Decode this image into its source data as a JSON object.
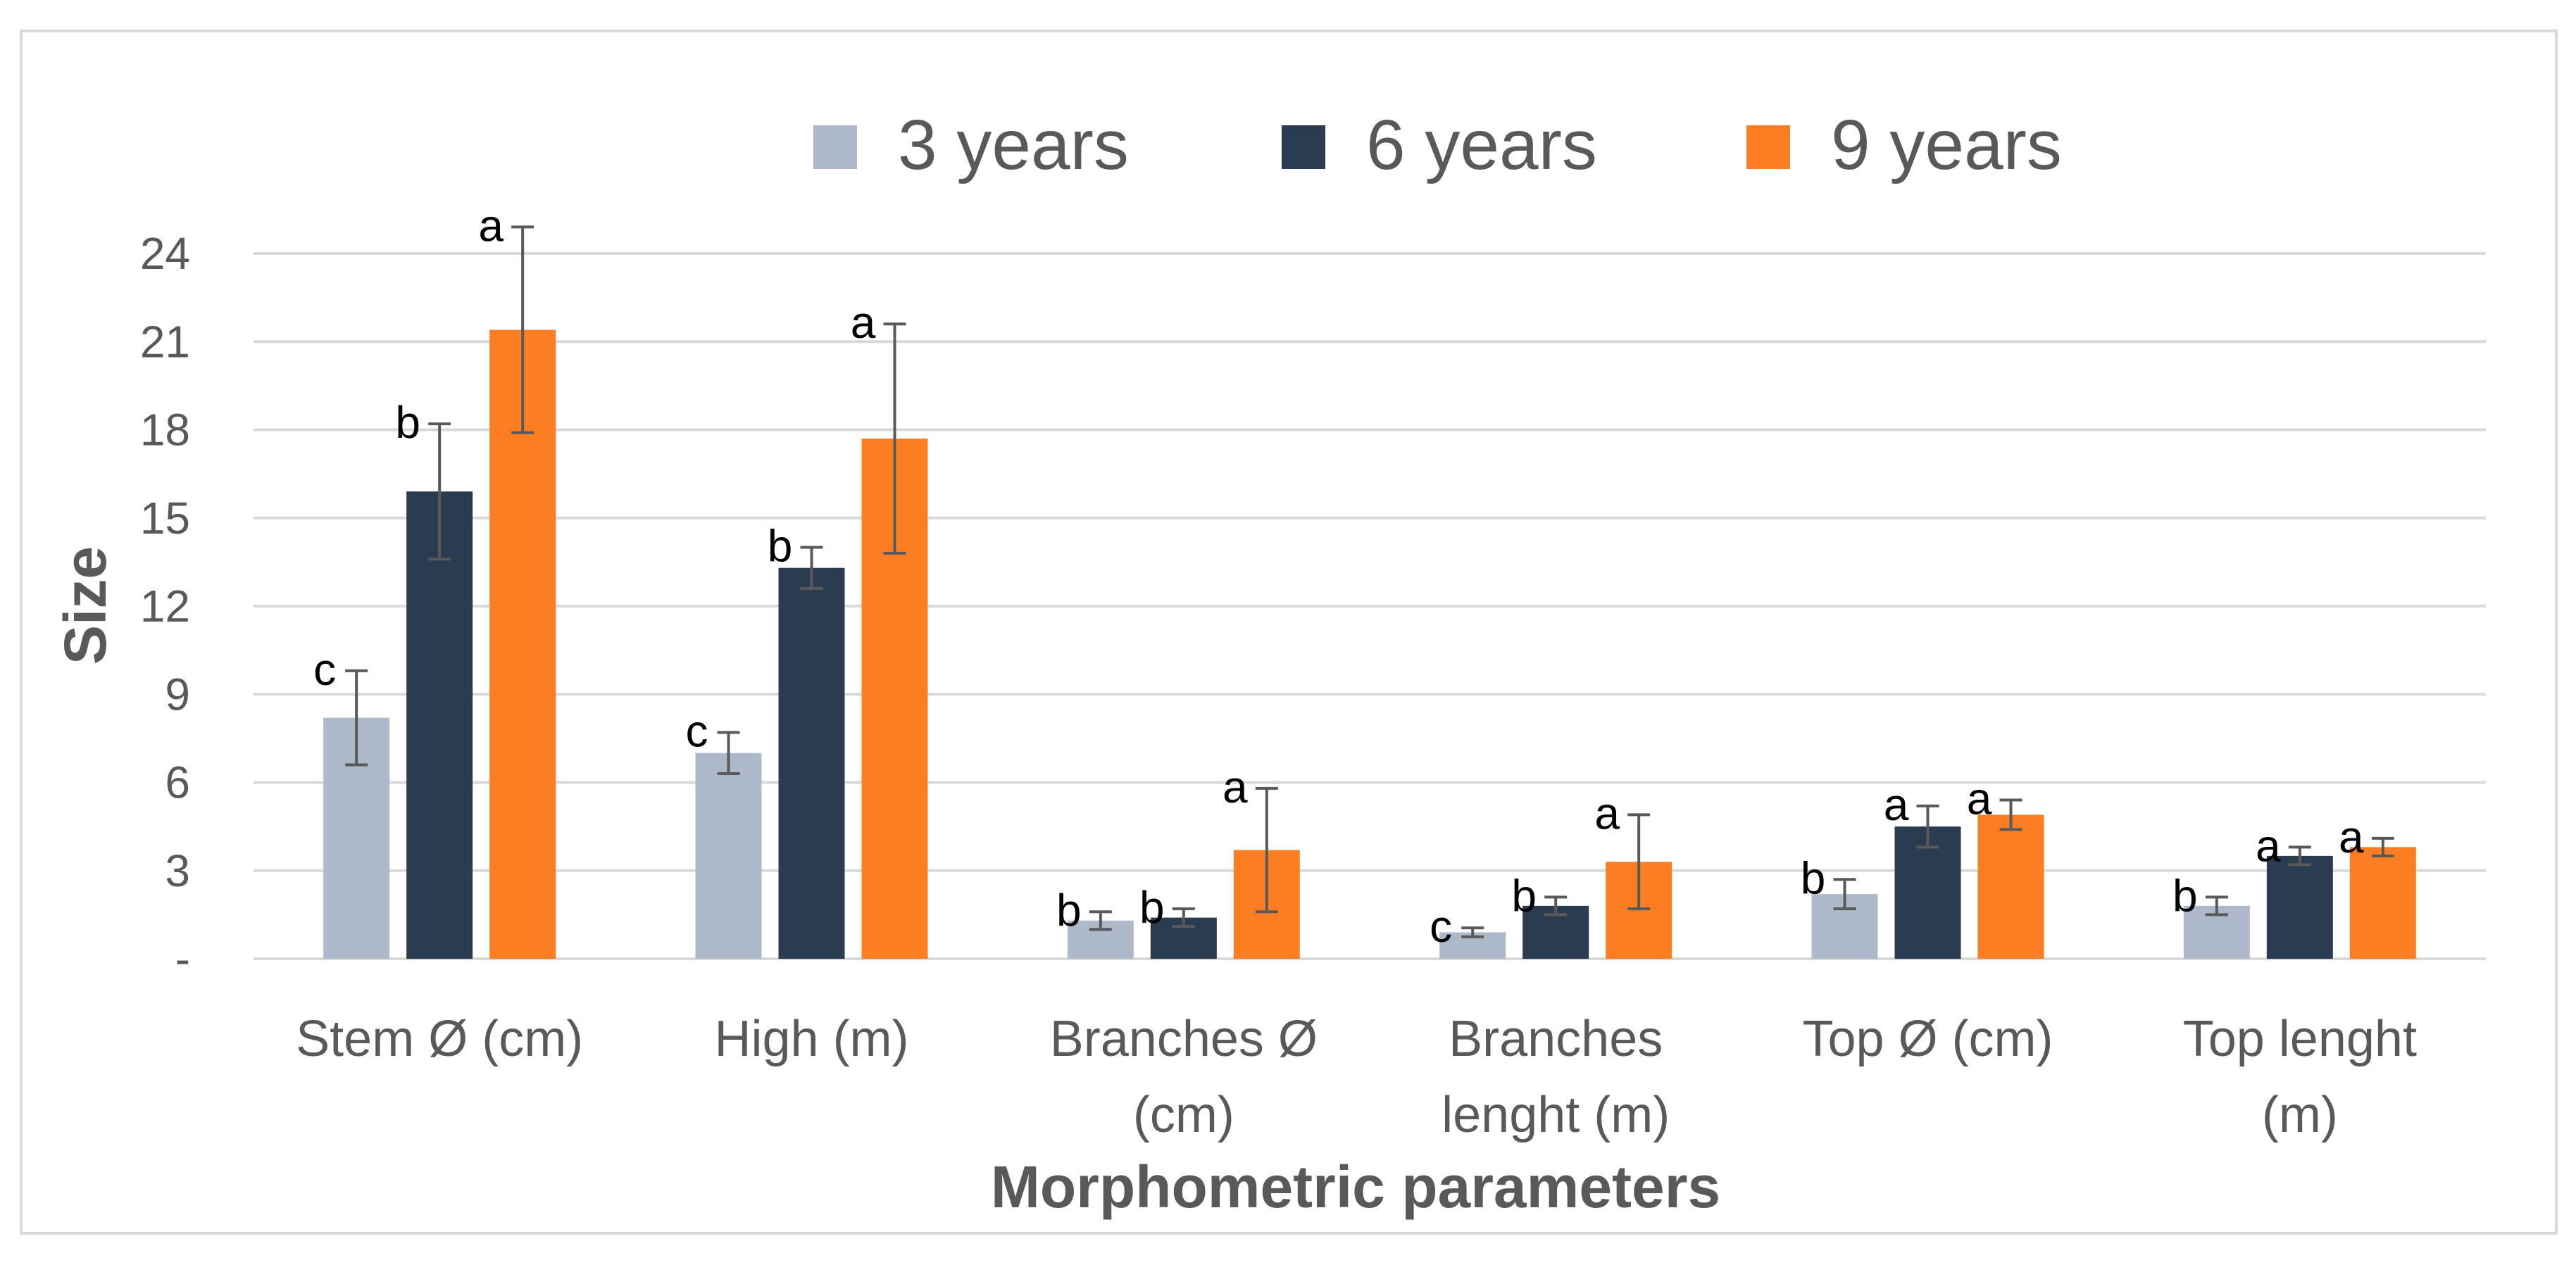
{
  "chart_data": {
    "type": "bar",
    "title": "",
    "xlabel": "Morphometric parameters",
    "ylabel": "Size",
    "ylim": [
      0,
      24
    ],
    "yticks": [
      0,
      3,
      6,
      9,
      12,
      15,
      18,
      21,
      24
    ],
    "ytick_labels": [
      "-",
      "3",
      "6",
      "9",
      "12",
      "15",
      "18",
      "21",
      "24"
    ],
    "grid": true,
    "legend_position": "top",
    "categories": [
      [
        "Stem Ø (cm)"
      ],
      [
        "High (m)"
      ],
      [
        "Branches Ø",
        "(cm)"
      ],
      [
        "Branches",
        "lenght (m)"
      ],
      [
        "Top Ø  (cm)"
      ],
      [
        "Top lenght",
        "(m)"
      ]
    ],
    "series": [
      {
        "name": "3 years",
        "color": "#adb9ca",
        "values": [
          8.2,
          7.0,
          1.3,
          0.9,
          2.2,
          1.8
        ],
        "errors": [
          1.6,
          0.7,
          0.3,
          0.15,
          0.5,
          0.3
        ],
        "labels": [
          "c",
          "c",
          "b",
          "c",
          "b",
          "b"
        ]
      },
      {
        "name": "6 years",
        "color": "#2a3c4f",
        "values": [
          15.9,
          13.3,
          1.4,
          1.8,
          4.5,
          3.5
        ],
        "errors": [
          2.3,
          0.7,
          0.3,
          0.3,
          0.7,
          0.3
        ],
        "labels": [
          "b",
          "b",
          "b",
          "b",
          "a",
          "a"
        ]
      },
      {
        "name": "9 years",
        "color": "#fd7e22",
        "values": [
          21.4,
          17.7,
          3.7,
          3.3,
          4.9,
          3.8
        ],
        "errors": [
          3.5,
          3.9,
          2.1,
          1.6,
          0.5,
          0.3
        ],
        "labels": [
          "a",
          "a",
          "a",
          "a",
          "a",
          "a"
        ]
      }
    ]
  }
}
